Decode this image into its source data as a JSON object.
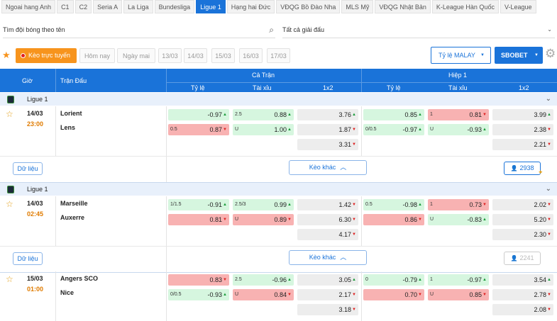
{
  "league_tabs": [
    "Ngoai hang Anh",
    "C1",
    "C2",
    "Seria A",
    "La Liga",
    "Bundesliga",
    "Ligue 1",
    "Hạng hai Đức",
    "VĐQG Bồ Đào Nha",
    "MLS Mỹ",
    "VĐQG Nhật Bản",
    "K-League Hàn Quốc",
    "V-League"
  ],
  "active_tab": "Ligue 1",
  "search": {
    "placeholder": "Tìm đội bóng theo tên",
    "league_select": "Tất cả giải đấu"
  },
  "date_bar": {
    "live_label": "Kèo trực tuyến",
    "days": [
      "Hôm nay",
      "Ngày mai",
      "13/03",
      "14/03",
      "15/03",
      "16/03",
      "17/03"
    ],
    "odds_type": "Tỷ lệ MALAY",
    "bookmaker": "SBOBET"
  },
  "table_header": {
    "time": "Giờ",
    "match": "Trận Đấu",
    "full_match": "Cả Trận",
    "half1": "Hiệp 1",
    "handicap": "Tỷ lệ",
    "over_under": "Tài xỉu",
    "x12": "1x2"
  },
  "more_odds_label": "Kèo khác",
  "data_label": "Dữ liệu",
  "colors": {
    "accent": "#1a73d9",
    "orange": "#f7941d",
    "up": "#d6f6df",
    "down": "#f8b2b2"
  },
  "matches": [
    {
      "league": "Ligue 1",
      "date": "14/03",
      "time": "23:00",
      "home": "Lorient",
      "away": "Lens",
      "viewers": "2938",
      "ft_hdp": [
        [
          "",
          "-0.97",
          "up",
          "g"
        ],
        [
          "0.5",
          "0.87",
          "down",
          "r"
        ]
      ],
      "ft_ou": [
        [
          "2.5",
          "0.88",
          "up",
          "g"
        ],
        [
          "U",
          "1.00",
          "up",
          "g"
        ]
      ],
      "ft_x12": [
        [
          "3.76",
          "up"
        ],
        [
          "1.87",
          "down"
        ],
        [
          "3.31",
          "down"
        ]
      ],
      "h1_hdp": [
        [
          "",
          "0.85",
          "up",
          "g"
        ],
        [
          "0/0.5",
          "-0.97",
          "up",
          "g"
        ]
      ],
      "h1_ou": [
        [
          "1",
          "0.81",
          "down",
          "r"
        ],
        [
          "U",
          "-0.93",
          "up",
          "g"
        ]
      ],
      "h1_x12": [
        [
          "3.99",
          "up"
        ],
        [
          "2.38",
          "down"
        ],
        [
          "2.21",
          "down"
        ]
      ]
    },
    {
      "league": "Ligue 1",
      "date": "14/03",
      "time": "02:45",
      "home": "Marseille",
      "away": "Auxerre",
      "viewers": "2241",
      "ft_hdp": [
        [
          "1/1.5",
          "-0.91",
          "up",
          "g"
        ],
        [
          "",
          "0.81",
          "down",
          "r"
        ]
      ],
      "ft_ou": [
        [
          "2.5/3",
          "0.99",
          "up",
          "g"
        ],
        [
          "U",
          "0.89",
          "down",
          "r"
        ]
      ],
      "ft_x12": [
        [
          "1.42",
          "down"
        ],
        [
          "6.30",
          "down"
        ],
        [
          "4.17",
          "down"
        ]
      ],
      "h1_hdp": [
        [
          "0.5",
          "-0.98",
          "up",
          "g"
        ],
        [
          "",
          "0.86",
          "down",
          "r"
        ]
      ],
      "h1_ou": [
        [
          "1",
          "0.73",
          "down",
          "r"
        ],
        [
          "U",
          "-0.83",
          "up",
          "g"
        ]
      ],
      "h1_x12": [
        [
          "2.02",
          "down"
        ],
        [
          "5.20",
          "down"
        ],
        [
          "2.30",
          "down"
        ]
      ]
    },
    {
      "league": "",
      "date": "15/03",
      "time": "01:00",
      "home": "Angers SCO",
      "away": "Nice",
      "viewers": "",
      "ft_hdp": [
        [
          "",
          "0.83",
          "down",
          "r"
        ],
        [
          "0/0.5",
          "-0.93",
          "up",
          "g"
        ]
      ],
      "ft_ou": [
        [
          "2.5",
          "-0.96",
          "up",
          "g"
        ],
        [
          "U",
          "0.84",
          "down",
          "r"
        ]
      ],
      "ft_x12": [
        [
          "3.05",
          "up"
        ],
        [
          "2.17",
          "down"
        ],
        [
          "3.18",
          "down"
        ]
      ],
      "h1_hdp": [
        [
          "0",
          "-0.79",
          "up",
          "g"
        ],
        [
          "",
          "0.70",
          "down",
          "r"
        ]
      ],
      "h1_ou": [
        [
          "1",
          "-0.97",
          "up",
          "g"
        ],
        [
          "U",
          "0.85",
          "down",
          "r"
        ]
      ],
      "h1_x12": [
        [
          "3.54",
          "up"
        ],
        [
          "2.78",
          "down"
        ],
        [
          "2.08",
          "down"
        ]
      ]
    }
  ]
}
